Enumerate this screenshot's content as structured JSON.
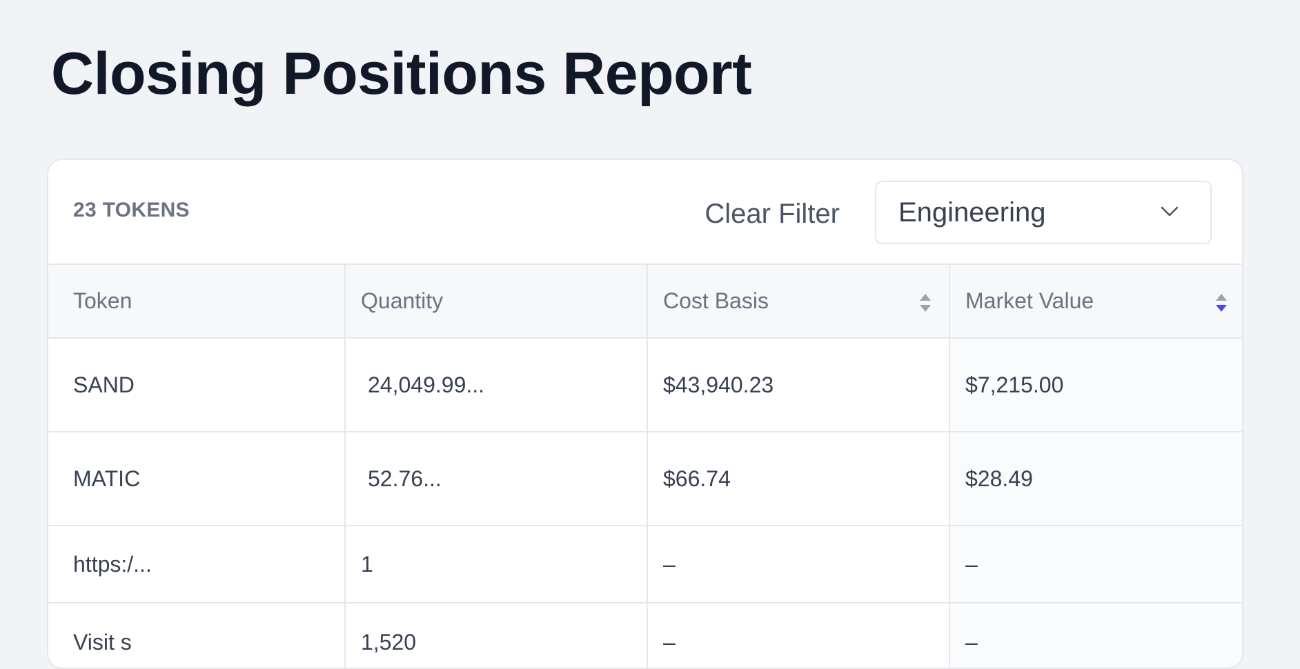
{
  "page": {
    "title": "Closing Positions Report"
  },
  "toolbar": {
    "count_label": "23 TOKENS",
    "clear_filter_label": "Clear Filter",
    "filter_selected": "Engineering"
  },
  "table": {
    "columns": [
      "Token",
      "Quantity",
      "Cost Basis",
      "Market Value"
    ],
    "rows": [
      [
        "SAND",
        "24,049.99...",
        "$43,940.23",
        "$7,215.00"
      ],
      [
        "MATIC",
        "52.76...",
        "$66.74",
        "$28.49"
      ],
      [
        "https:/...",
        "1",
        "–",
        "–"
      ],
      [
        "Visit s",
        "1,520",
        "–",
        "–"
      ]
    ]
  },
  "colors": {
    "accent": "#4f46e5",
    "sort_inactive": "#9ca3af",
    "background": "#f2f3f7"
  },
  "icons": {
    "filter_dropdown": "chevron-down-icon",
    "sort": "sort-icon"
  }
}
